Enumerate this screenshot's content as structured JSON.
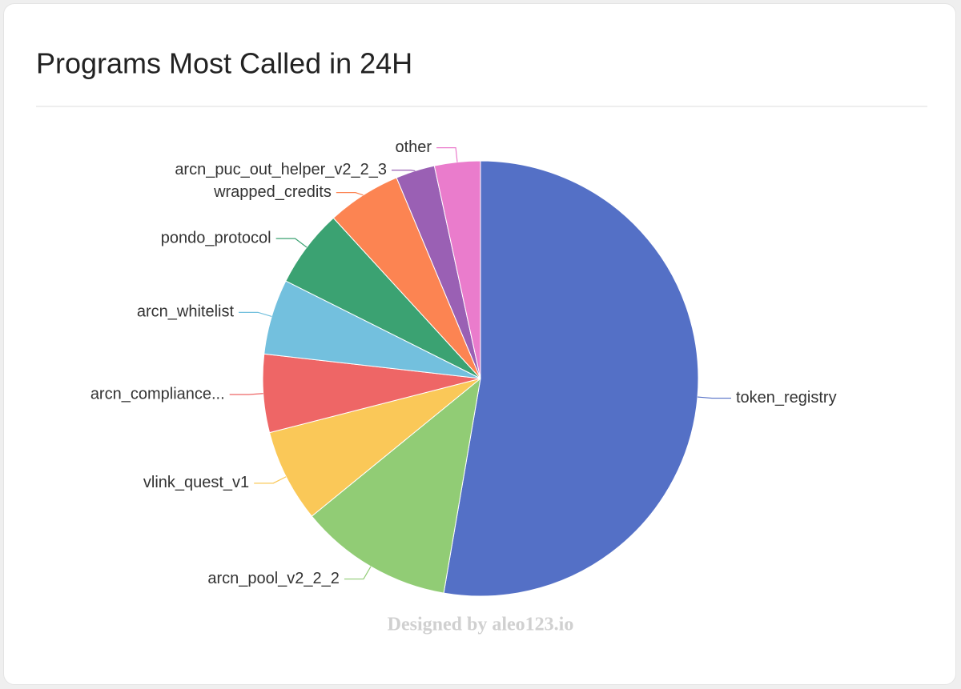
{
  "chart_data": {
    "type": "pie",
    "title": "Programs Most Called in 24H",
    "categories": [
      "token_registry",
      "arcn_pool_v2_2_2",
      "vlink_quest_v1",
      "arcn_compliance...",
      "arcn_whitelist",
      "pondo_protocol",
      "wrapped_credits",
      "arcn_puc_out_helper_v2_2_3",
      "other"
    ],
    "values": [
      52.7,
      11.4,
      6.9,
      5.8,
      5.6,
      5.8,
      5.5,
      2.9,
      3.4
    ],
    "colors": [
      "#5470c6",
      "#91cc75",
      "#fac858",
      "#ee6666",
      "#73c0de",
      "#3ba272",
      "#fc8452",
      "#9a60b4",
      "#ea7ccc"
    ],
    "watermark": "Designed by aleo123.io"
  }
}
